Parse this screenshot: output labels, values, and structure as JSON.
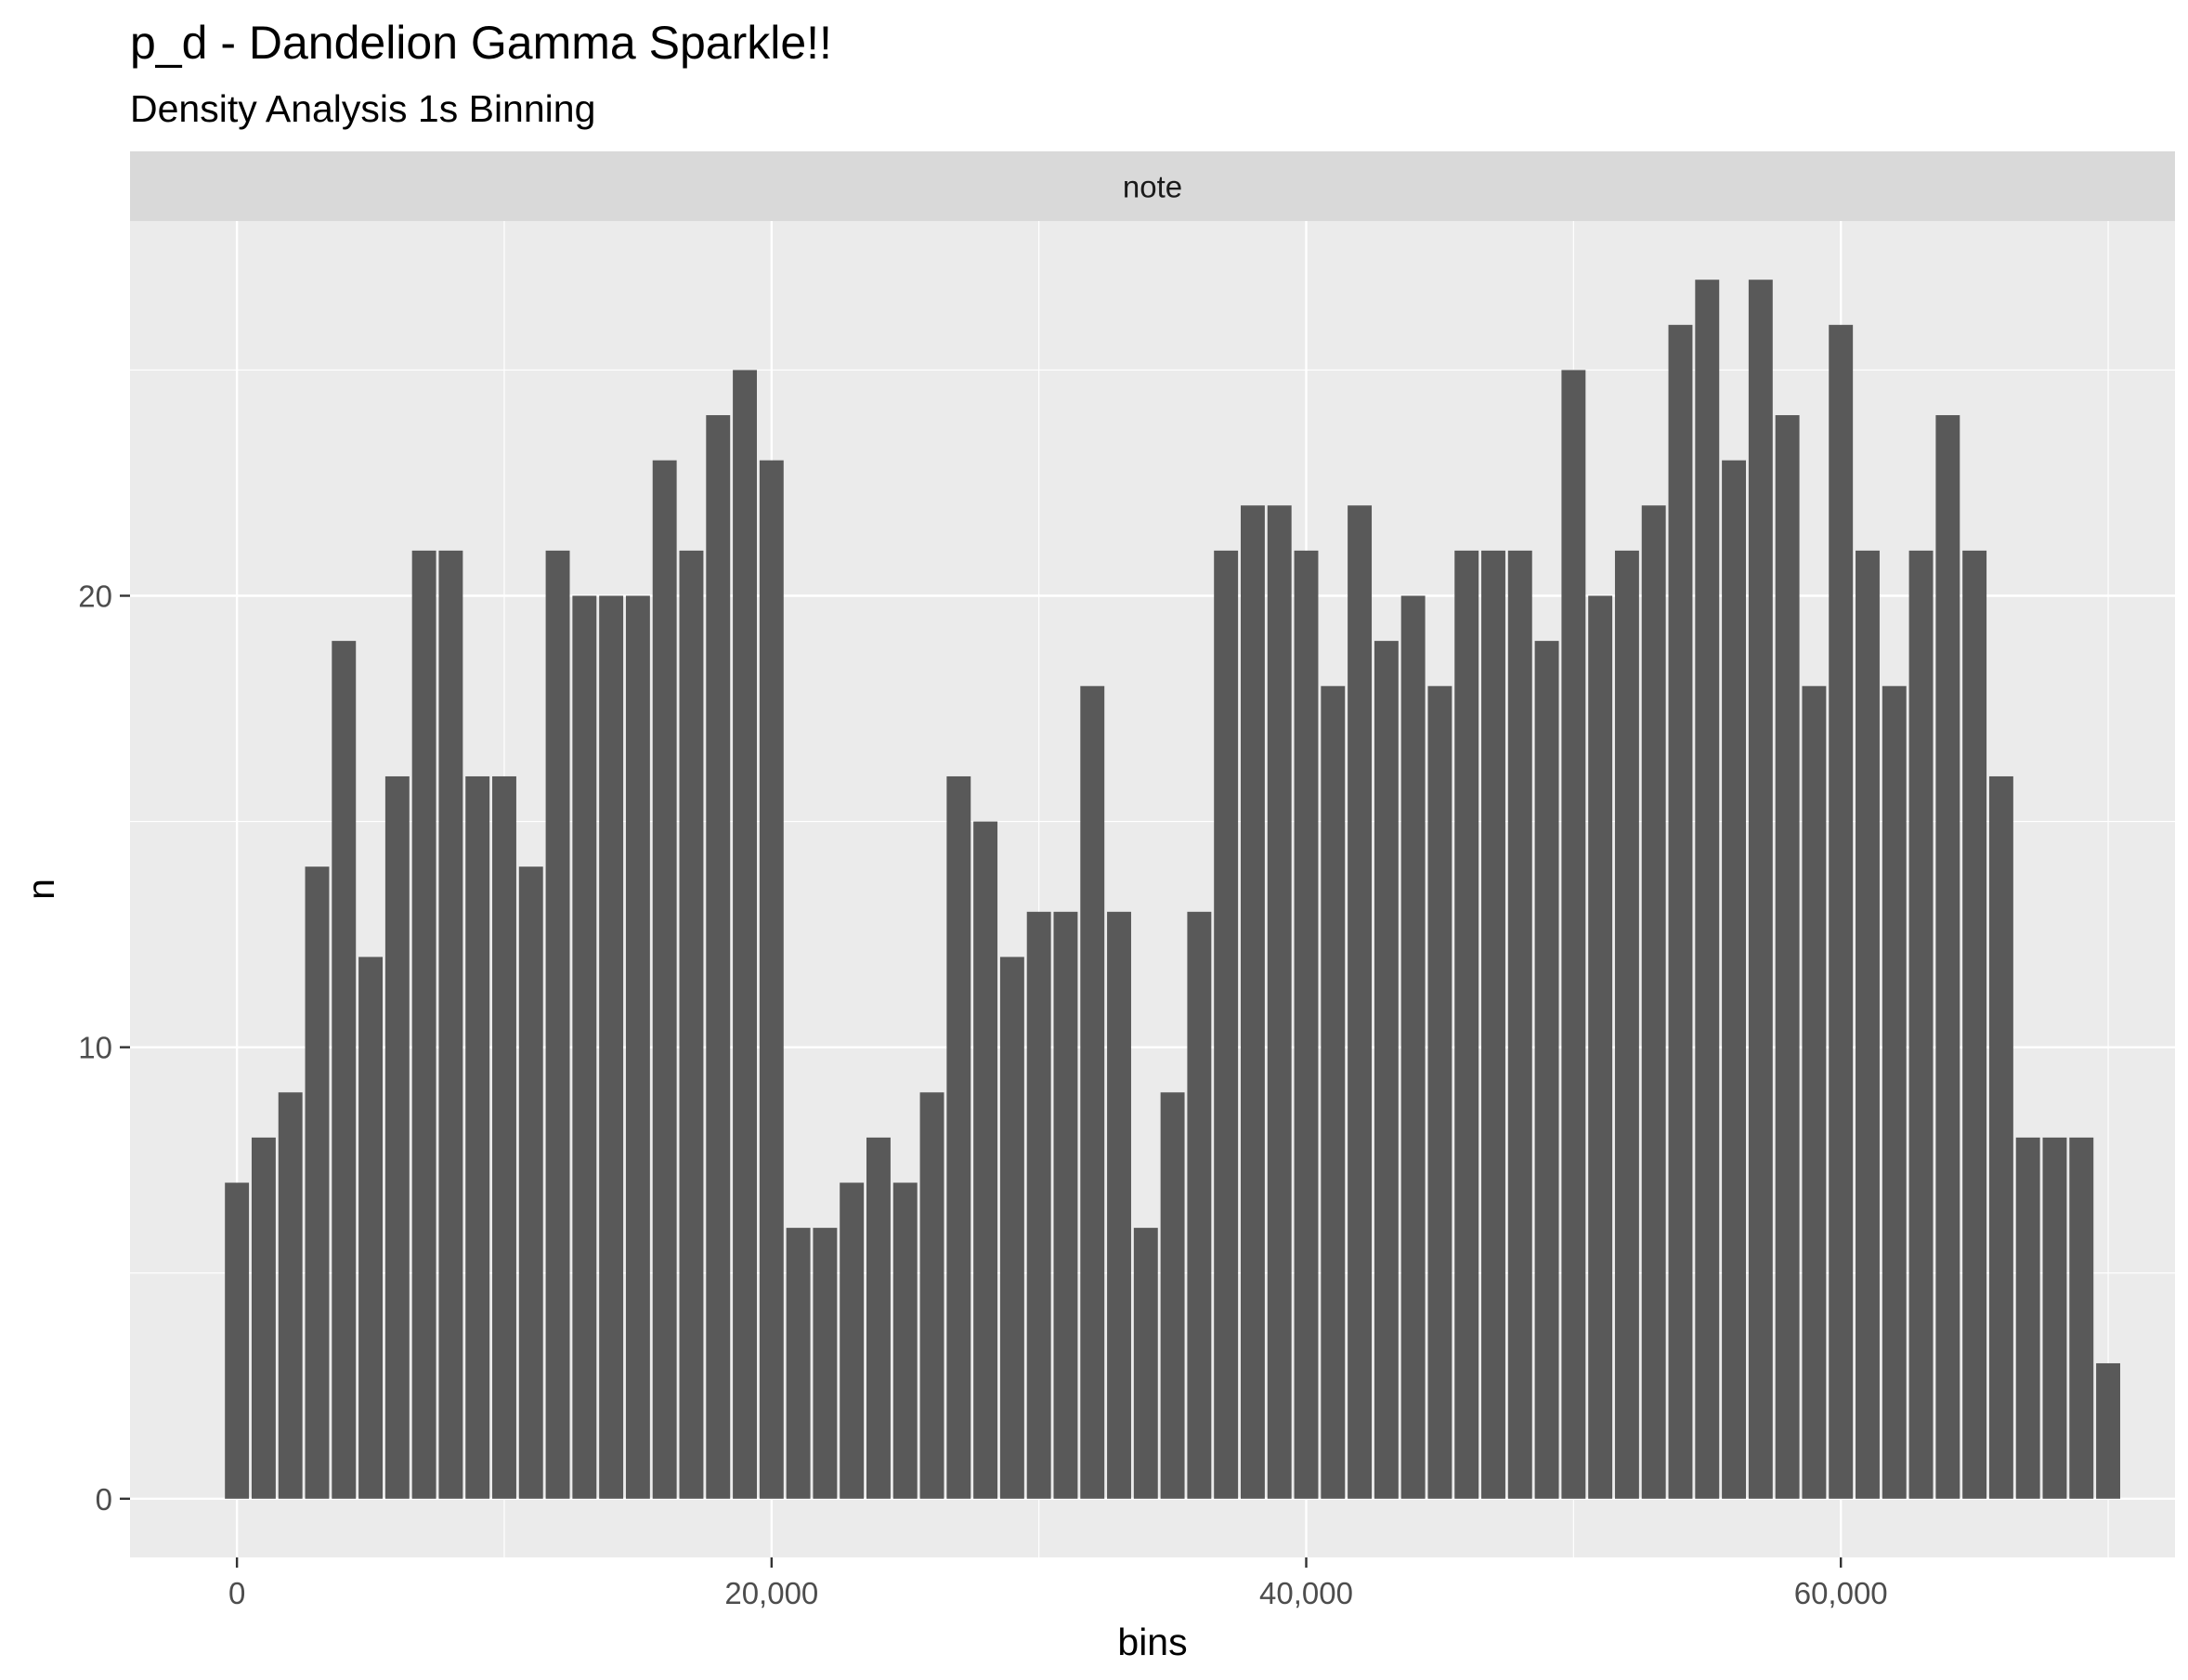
{
  "chart_data": {
    "type": "bar",
    "title": "p_d - Dandelion Gamma Sparkle!!",
    "subtitle": "Density Analysis 1s Binning",
    "facet_label": "note",
    "xlabel": "bins",
    "ylabel": "n",
    "xlim": [
      -4000,
      72500
    ],
    "ylim": [
      -1.3,
      28.3
    ],
    "bin_width": 1000,
    "x_ticks": [
      0,
      20000,
      40000,
      60000
    ],
    "x_tick_labels": [
      "0",
      "20,000",
      "40,000",
      "60,000"
    ],
    "y_ticks": [
      0,
      10,
      20
    ],
    "y_tick_labels": [
      "0",
      "10",
      "20"
    ],
    "grid": true,
    "bar_color": "#595959",
    "panel_color": "#ebebeb",
    "strip_color": "#d9d9d9",
    "x": [
      0,
      1000,
      2000,
      3000,
      4000,
      5000,
      6000,
      7000,
      8000,
      9000,
      10000,
      11000,
      12000,
      13000,
      14000,
      15000,
      16000,
      17000,
      18000,
      19000,
      20000,
      21000,
      22000,
      23000,
      24000,
      25000,
      26000,
      27000,
      28000,
      29000,
      30000,
      31000,
      32000,
      33000,
      34000,
      35000,
      36000,
      37000,
      38000,
      39000,
      40000,
      41000,
      42000,
      43000,
      44000,
      45000,
      46000,
      47000,
      48000,
      49000,
      50000,
      51000,
      52000,
      53000,
      54000,
      55000,
      56000,
      57000,
      58000,
      59000,
      60000,
      61000,
      62000,
      63000,
      64000,
      65000,
      66000,
      67000,
      68000,
      69000,
      70000
    ],
    "values": [
      7,
      8,
      9,
      14,
      19,
      12,
      16,
      21,
      21,
      16,
      16,
      14,
      21,
      20,
      20,
      20,
      23,
      21,
      24,
      25,
      23,
      6,
      6,
      7,
      8,
      7,
      9,
      16,
      15,
      12,
      13,
      13,
      18,
      13,
      6,
      9,
      13,
      21,
      22,
      22,
      21,
      18,
      22,
      19,
      20,
      18,
      21,
      21,
      21,
      19,
      25,
      20,
      21,
      22,
      26,
      27,
      23,
      27,
      24,
      18,
      26,
      21,
      18,
      21,
      24,
      21,
      16,
      8,
      8,
      8,
      3
    ]
  }
}
